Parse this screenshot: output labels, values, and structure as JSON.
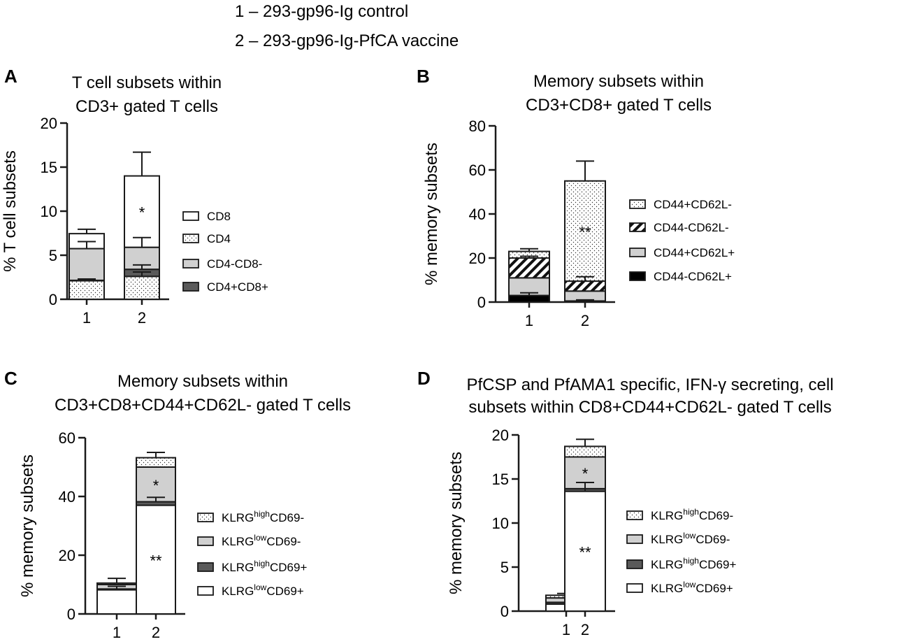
{
  "header": {
    "group_labels": [
      "1 – 293-gp96-Ig control",
      "2 – 293-gp96-Ig-PfCA vaccine"
    ]
  },
  "chart_data": [
    {
      "panel": "A",
      "type": "bar",
      "stacked": true,
      "title": [
        "T cell subsets within",
        "CD3+ gated T cells"
      ],
      "ylabel": "% T cell subsets",
      "categories": [
        "1",
        "2"
      ],
      "ylim": [
        0,
        20
      ],
      "yticks": [
        0,
        5,
        10,
        15,
        20
      ],
      "series": [
        {
          "name": "CD4",
          "pattern": "dots",
          "values": [
            2.1,
            2.6
          ],
          "errors": [
            0.2,
            0.5
          ]
        },
        {
          "name": "CD4+CD8+",
          "pattern": "dark",
          "values": [
            0.05,
            0.8
          ],
          "errors": [
            0,
            0.5
          ]
        },
        {
          "name": "CD4-CD8-",
          "pattern": "gray",
          "values": [
            3.6,
            2.5
          ],
          "errors": [
            0.8,
            1.1
          ]
        },
        {
          "name": "CD8",
          "pattern": "white",
          "values": [
            1.7,
            8.1
          ],
          "errors": [
            0.5,
            2.7
          ]
        }
      ],
      "legend_order": [
        "CD8",
        "CD4",
        "CD4-CD8-",
        "CD4+CD8+"
      ],
      "annotations": [
        {
          "category": "2",
          "series": "CD8",
          "text": "*"
        }
      ]
    },
    {
      "panel": "B",
      "type": "bar",
      "stacked": true,
      "title": [
        "Memory subsets within",
        "CD3+CD8+ gated T cells"
      ],
      "ylabel": "% memory subsets",
      "categories": [
        "1",
        "2"
      ],
      "ylim": [
        0,
        80
      ],
      "yticks": [
        0,
        20,
        40,
        60,
        80
      ],
      "series": [
        {
          "name": "CD44-CD62L+",
          "pattern": "black",
          "values": [
            3,
            0.5
          ],
          "errors": [
            1.2,
            0.5
          ]
        },
        {
          "name": "CD44+CD62L+",
          "pattern": "gray",
          "values": [
            8,
            4.5
          ],
          "errors": [
            0,
            0
          ]
        },
        {
          "name": "CD44-CD62L-",
          "pattern": "hatch",
          "values": [
            9,
            4.5
          ],
          "errors": [
            0.8,
            2
          ]
        },
        {
          "name": "CD44+CD62L-",
          "pattern": "dots",
          "values": [
            3,
            45.5
          ],
          "errors": [
            1.2,
            9
          ]
        }
      ],
      "legend_order": [
        "CD44+CD62L-",
        "CD44-CD62L-",
        "CD44+CD62L+",
        "CD44-CD62L+"
      ],
      "annotations": [
        {
          "category": "2",
          "series": "CD44+CD62L-",
          "text": "**"
        }
      ]
    },
    {
      "panel": "C",
      "type": "bar",
      "stacked": true,
      "title": [
        "Memory subsets within",
        "CD3+CD8+CD44+CD62L- gated T cells"
      ],
      "ylabel": "% memory subsets",
      "categories": [
        "1",
        "2"
      ],
      "ylim": [
        0,
        60
      ],
      "yticks": [
        0,
        20,
        40,
        60
      ],
      "series": [
        {
          "name_base": "KLRG",
          "name_sup": "low",
          "name_tail": "CD69+",
          "pattern": "white",
          "values": [
            8.2,
            37
          ],
          "errors": [
            1.2,
            0
          ]
        },
        {
          "name_base": "KLRG",
          "name_sup": "high",
          "name_tail": "CD69+",
          "pattern": "dark",
          "values": [
            0.3,
            1.2
          ],
          "errors": [
            0,
            1.5
          ]
        },
        {
          "name_base": "KLRG",
          "name_sup": "low",
          "name_tail": "CD69-",
          "pattern": "gray",
          "values": [
            1.5,
            11.8
          ],
          "errors": [
            0,
            0
          ]
        },
        {
          "name_base": "KLRG",
          "name_sup": "high",
          "name_tail": "CD69-",
          "pattern": "dots",
          "values": [
            0.5,
            3.2
          ],
          "errors": [
            1.6,
            1.8
          ]
        }
      ],
      "legend_order": [
        3,
        2,
        1,
        0
      ],
      "annotations": [
        {
          "category": "2",
          "series_index": 0,
          "text": "**"
        },
        {
          "category": "2",
          "series_index": 2,
          "text": "*"
        }
      ]
    },
    {
      "panel": "D",
      "type": "bar",
      "stacked": true,
      "title": [
        "PfCSP and PfAMA1 specific, IFN-γ secreting, cell",
        "subsets within CD8+CD44+CD62L- gated T cells"
      ],
      "ylabel": "% memory subsets",
      "categories": [
        "1",
        "2"
      ],
      "ylim": [
        0,
        20
      ],
      "yticks": [
        0,
        5,
        10,
        15,
        20
      ],
      "series": [
        {
          "name_base": "KLRG",
          "name_sup": "low",
          "name_tail": "CD69+",
          "pattern": "white",
          "values": [
            0.8,
            13.6
          ],
          "errors": [
            0,
            1
          ]
        },
        {
          "name_base": "KLRG",
          "name_sup": "high",
          "name_tail": "CD69+",
          "pattern": "dark",
          "values": [
            0.2,
            0.3
          ],
          "errors": [
            0,
            0
          ]
        },
        {
          "name_base": "KLRG",
          "name_sup": "low",
          "name_tail": "CD69-",
          "pattern": "gray",
          "values": [
            0.5,
            3.6
          ],
          "errors": [
            0,
            0
          ]
        },
        {
          "name_base": "KLRG",
          "name_sup": "high",
          "name_tail": "CD69-",
          "pattern": "dots",
          "values": [
            0.3,
            1.2
          ],
          "errors": [
            0.2,
            0.8
          ]
        }
      ],
      "legend_order": [
        3,
        2,
        1,
        0
      ],
      "annotations": [
        {
          "category": "2",
          "series_index": 0,
          "text": "**"
        },
        {
          "category": "2",
          "series_index": 2,
          "text": "*"
        }
      ]
    }
  ],
  "panel_letters": [
    "A",
    "B",
    "C",
    "D"
  ],
  "colors": {
    "axis": "#1a1a1a",
    "gray": "#d0d0d0",
    "dark": "#5a5a5a",
    "black": "#000000",
    "white": "#ffffff"
  }
}
